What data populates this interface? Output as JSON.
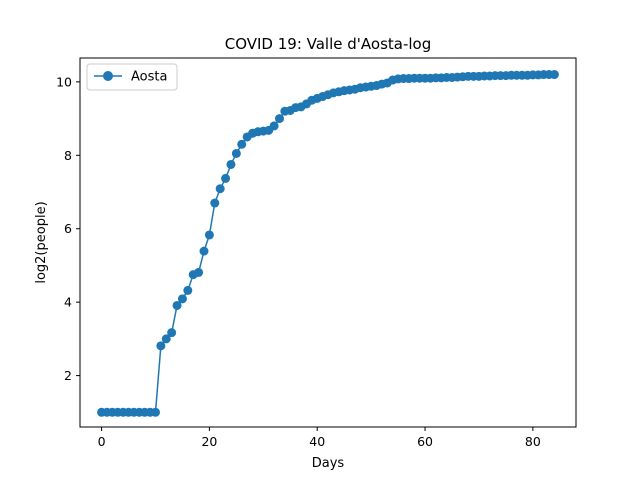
{
  "chart_data": {
    "type": "line",
    "title": "COVID 19: Valle d'Aosta-log",
    "xlabel": "Days",
    "ylabel": "log2(people)",
    "xlim": [
      -4,
      88
    ],
    "ylim": [
      0.6,
      10.65
    ],
    "xticks": [
      0,
      20,
      40,
      60,
      80
    ],
    "yticks": [
      2,
      4,
      6,
      8,
      10
    ],
    "grid": false,
    "legend_position": "top-left",
    "series": [
      {
        "name": "Aosta",
        "color": "#1f77b4",
        "marker": "circle",
        "x": [
          0,
          1,
          2,
          3,
          4,
          5,
          6,
          7,
          8,
          9,
          10,
          11,
          12,
          13,
          14,
          15,
          16,
          17,
          18,
          19,
          20,
          21,
          22,
          23,
          24,
          25,
          26,
          27,
          28,
          29,
          30,
          31,
          32,
          33,
          34,
          35,
          36,
          37,
          38,
          39,
          40,
          41,
          42,
          43,
          44,
          45,
          46,
          47,
          48,
          49,
          50,
          51,
          52,
          53,
          54,
          55,
          56,
          57,
          58,
          59,
          60,
          61,
          62,
          63,
          64,
          65,
          66,
          67,
          68,
          69,
          70,
          71,
          72,
          73,
          74,
          75,
          76,
          77,
          78,
          79,
          80,
          81,
          82,
          83,
          84
        ],
        "values": [
          1.0,
          1.0,
          1.0,
          1.0,
          1.0,
          1.0,
          1.0,
          1.0,
          1.0,
          1.0,
          1.0,
          2.81,
          3.0,
          3.17,
          3.91,
          4.09,
          4.32,
          4.75,
          4.81,
          5.39,
          5.83,
          6.7,
          7.09,
          7.37,
          7.75,
          8.05,
          8.3,
          8.5,
          8.6,
          8.64,
          8.66,
          8.68,
          8.8,
          9.0,
          9.2,
          9.22,
          9.3,
          9.32,
          9.4,
          9.5,
          9.55,
          9.6,
          9.65,
          9.7,
          9.73,
          9.76,
          9.78,
          9.8,
          9.84,
          9.86,
          9.88,
          9.9,
          9.94,
          9.97,
          10.05,
          10.08,
          10.09,
          10.09,
          10.1,
          10.1,
          10.1,
          10.1,
          10.11,
          10.11,
          10.12,
          10.12,
          10.13,
          10.14,
          10.15,
          10.15,
          10.15,
          10.16,
          10.16,
          10.17,
          10.17,
          10.17,
          10.18,
          10.18,
          10.18,
          10.18,
          10.19,
          10.19,
          10.2,
          10.2,
          10.2
        ]
      }
    ]
  }
}
